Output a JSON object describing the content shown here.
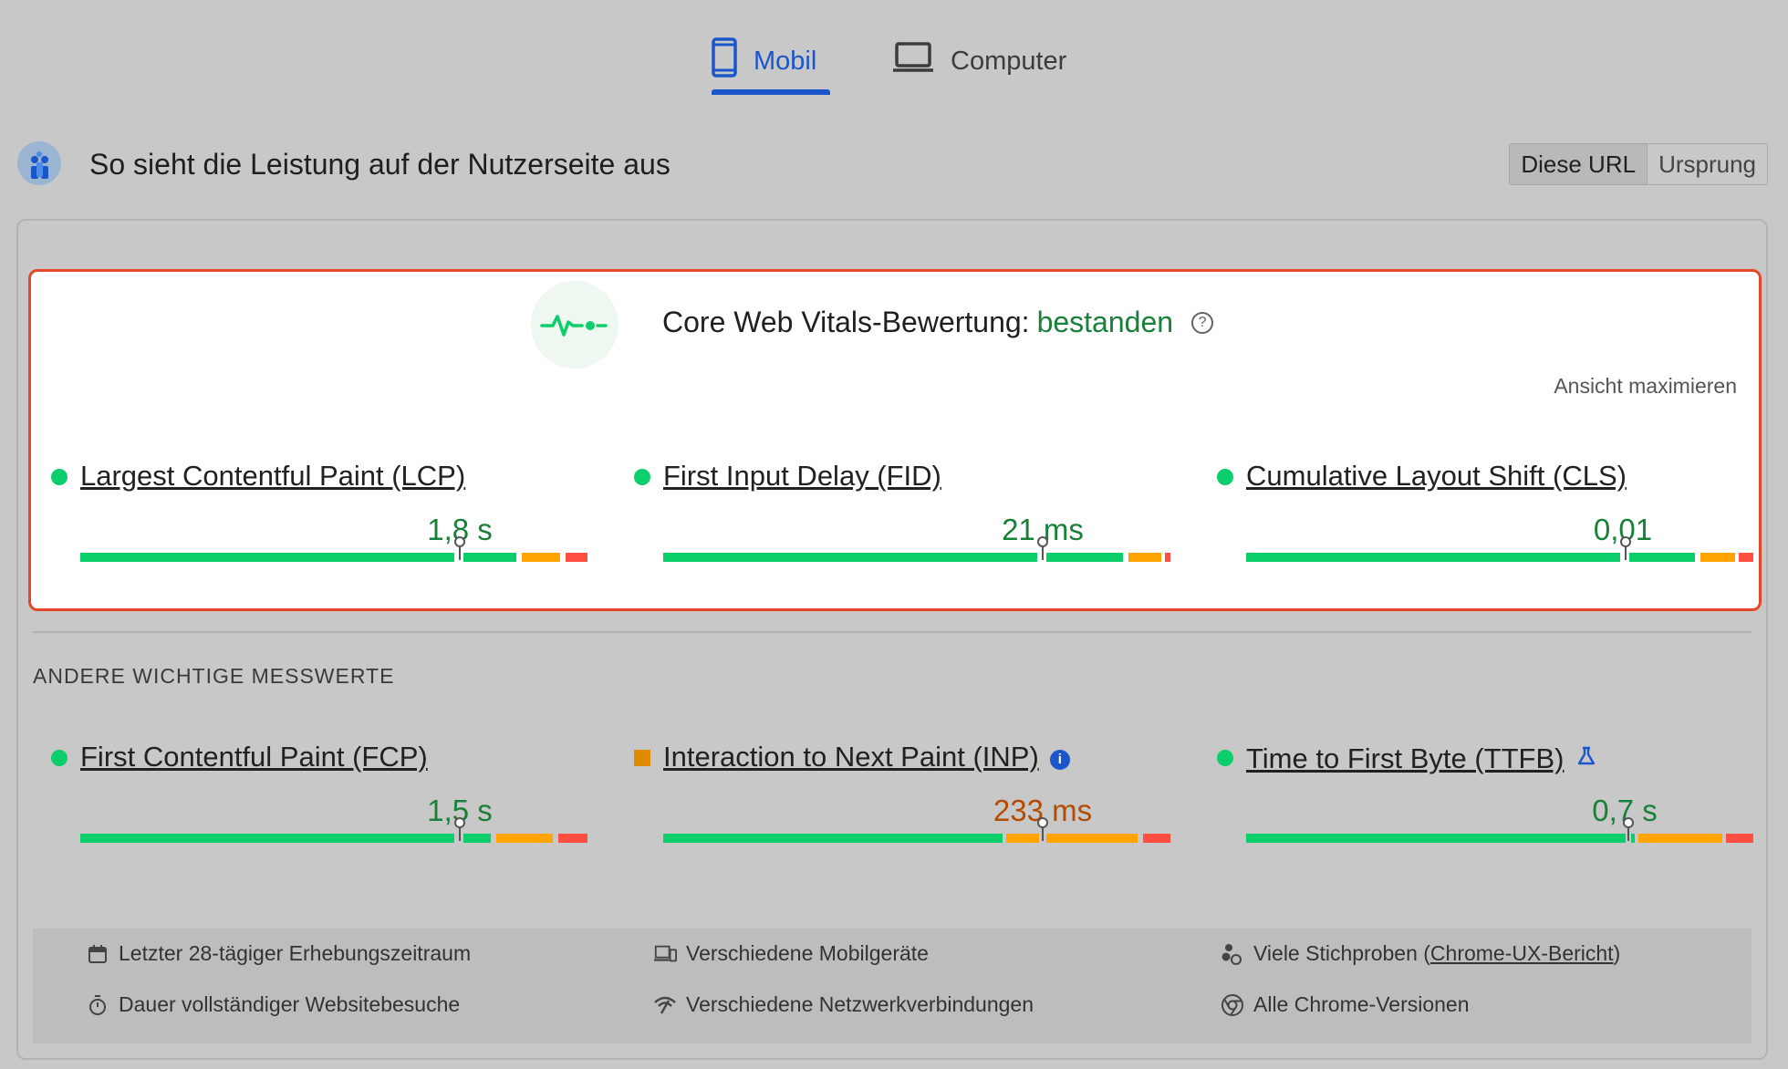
{
  "tabs": {
    "mobile": "Mobil",
    "desktop": "Computer"
  },
  "header": {
    "title": "So sieht die Leistung auf der Nutzerseite aus",
    "toggle_url": "Diese URL",
    "toggle_origin": "Ursprung"
  },
  "assessment": {
    "label": "Core Web Vitals-Bewertung:",
    "result": "bestanden",
    "maximize": "Ansicht maximieren",
    "result_color": "#188038"
  },
  "core_metrics": [
    {
      "name": "Largest Contentful Paint (LCP)",
      "value": "1,8 s",
      "status": "good"
    },
    {
      "name": "First Input Delay (FID)",
      "value": "21 ms",
      "status": "good"
    },
    {
      "name": "Cumulative Layout Shift (CLS)",
      "value": "0,01",
      "status": "good"
    }
  ],
  "other_section_label": "ANDERE WICHTIGE MESSWERTE",
  "other_metrics": [
    {
      "name": "First Contentful Paint (FCP)",
      "value": "1,5 s",
      "status": "good"
    },
    {
      "name": "Interaction to Next Paint (INP)",
      "value": "233 ms",
      "status": "needs-improvement"
    },
    {
      "name": "Time to First Byte (TTFB)",
      "value": "0,7 s",
      "status": "good"
    }
  ],
  "footer": {
    "period": "Letzter 28-tägiger Erhebungszeitraum",
    "visits": "Dauer vollständiger Websitebesuche",
    "devices": "Verschiedene Mobilgeräte",
    "network": "Verschiedene Netzwerkverbindungen",
    "samples_prefix": "Viele Stichproben (",
    "samples_link": "Chrome-UX-Bericht",
    "samples_suffix": ")",
    "chrome": "Alle Chrome-Versionen"
  },
  "icons": [
    "smartphone-icon",
    "laptop-icon",
    "crux-logo-icon",
    "pulse-icon",
    "help-icon",
    "info-icon",
    "flask-icon",
    "calendar-icon",
    "stopwatch-icon",
    "devices-icon",
    "signal-icon",
    "people-icon",
    "chrome-icon"
  ],
  "colors": {
    "good": "#0cce6b",
    "average": "#ffa400",
    "poor": "#ff4e42",
    "accent": "#1a56c9",
    "highlight_border": "#e8462a"
  }
}
